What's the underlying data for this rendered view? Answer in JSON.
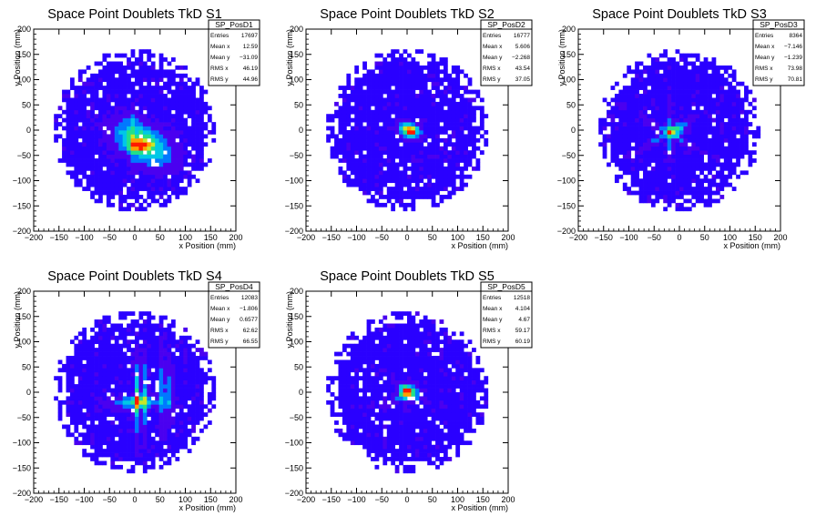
{
  "chart_data": [
    {
      "type": "heatmap",
      "title": "Space Point Doublets TkD S1",
      "xlabel": "x Position (mm)",
      "ylabel": "y Position (mm)",
      "xlim": [
        -200,
        200
      ],
      "ylim": [
        -200,
        200
      ],
      "xticks": [
        "−200",
        "−150",
        "−100",
        "−50",
        "0",
        "50",
        "100",
        "150",
        "200"
      ],
      "yticks": [
        "−200",
        "−150",
        "−100",
        "−50",
        "0",
        "50",
        "100",
        "150",
        "200"
      ],
      "stats": {
        "name": "SP_PosD1",
        "rows": [
          {
            "label": "Entries",
            "value": "17697"
          },
          {
            "label": "Mean x",
            "value": "12.59"
          },
          {
            "label": "Mean y",
            "value": "−31.09"
          },
          {
            "label": "RMS x",
            "value": "46.19"
          },
          {
            "label": "RMS y",
            "value": "44.96"
          }
        ]
      },
      "hotspots": [
        {
          "x": 15,
          "y": -25,
          "sx": 40,
          "sy": 22,
          "rot": -30,
          "amp": 0.55
        },
        {
          "x": 10,
          "y": -30,
          "sx": 12,
          "sy": 8,
          "rot": 0,
          "amp": 0.45
        },
        {
          "x": -5,
          "y": -10,
          "sx": 4,
          "sy": 40,
          "rot": 0,
          "amp": 0.15
        }
      ]
    },
    {
      "type": "heatmap",
      "title": "Space Point Doublets TkD S2",
      "xlabel": "x Position (mm)",
      "ylabel": "y Position (mm)",
      "xlim": [
        -200,
        200
      ],
      "ylim": [
        -200,
        200
      ],
      "xticks": [
        "−200",
        "−150",
        "−100",
        "−50",
        "0",
        "50",
        "100",
        "150",
        "200"
      ],
      "yticks": [
        "−200",
        "−150",
        "−100",
        "−50",
        "0",
        "50",
        "100",
        "150",
        "200"
      ],
      "stats": {
        "name": "SP_PosD2",
        "rows": [
          {
            "label": "Entries",
            "value": "16777"
          },
          {
            "label": "Mean x",
            "value": "5.606"
          },
          {
            "label": "Mean y",
            "value": "−2.268"
          },
          {
            "label": "RMS x",
            "value": "43.54"
          },
          {
            "label": "RMS y",
            "value": "37.05"
          }
        ]
      },
      "hotspots": [
        {
          "x": 5,
          "y": 0,
          "sx": 14,
          "sy": 9,
          "rot": -20,
          "amp": 0.7
        },
        {
          "x": 8,
          "y": -3,
          "sx": 5,
          "sy": 4,
          "rot": 0,
          "amp": 0.4
        }
      ]
    },
    {
      "type": "heatmap",
      "title": "Space Point Doublets TkD S3",
      "xlabel": "x Position (mm)",
      "ylabel": "y Position (mm)",
      "xlim": [
        -200,
        200
      ],
      "ylim": [
        -200,
        200
      ],
      "xticks": [
        "−200",
        "−150",
        "−100",
        "−50",
        "0",
        "50",
        "100",
        "150",
        "200"
      ],
      "yticks": [
        "−200",
        "−150",
        "−100",
        "−50",
        "0",
        "50",
        "100",
        "150",
        "200"
      ],
      "stats": {
        "name": "SP_PosD3",
        "rows": [
          {
            "label": "Entries",
            "value": "8364"
          },
          {
            "label": "Mean x",
            "value": "−7.146"
          },
          {
            "label": "Mean y",
            "value": "−1.239"
          },
          {
            "label": "RMS x",
            "value": "73.98"
          },
          {
            "label": "RMS y",
            "value": "70.81"
          }
        ]
      },
      "hotspots": [
        {
          "x": -20,
          "y": -5,
          "sx": 40,
          "sy": 4,
          "rot": 30,
          "amp": 0.25
        },
        {
          "x": -20,
          "y": -5,
          "sx": 40,
          "sy": 4,
          "rot": -30,
          "amp": 0.25
        },
        {
          "x": -20,
          "y": -5,
          "sx": 4,
          "sy": 35,
          "rot": 0,
          "amp": 0.22
        },
        {
          "x": -5,
          "y": 0,
          "sx": 10,
          "sy": 8,
          "rot": 0,
          "amp": 0.35
        }
      ]
    },
    {
      "type": "heatmap",
      "title": "Space Point Doublets TkD S4",
      "xlabel": "x Position (mm)",
      "ylabel": "y Position (mm)",
      "xlim": [
        -200,
        200
      ],
      "ylim": [
        -200,
        200
      ],
      "xticks": [
        "−200",
        "−150",
        "−100",
        "−50",
        "0",
        "50",
        "100",
        "150",
        "200"
      ],
      "yticks": [
        "−200",
        "−150",
        "−100",
        "−50",
        "0",
        "50",
        "100",
        "150",
        "200"
      ],
      "stats": {
        "name": "SP_PosD4",
        "rows": [
          {
            "label": "Entries",
            "value": "12083"
          },
          {
            "label": "Mean x",
            "value": "−1.806"
          },
          {
            "label": "Mean y",
            "value": "0.6577"
          },
          {
            "label": "RMS x",
            "value": "62.62"
          },
          {
            "label": "RMS y",
            "value": "66.55"
          }
        ]
      },
      "hotspots": [
        {
          "x": 5,
          "y": -10,
          "sx": 4,
          "sy": 45,
          "rot": 0,
          "amp": 0.45
        },
        {
          "x": 20,
          "y": -5,
          "sx": 4,
          "sy": 45,
          "rot": 0,
          "amp": 0.3
        },
        {
          "x": 55,
          "y": 0,
          "sx": 4,
          "sy": 45,
          "rot": 0,
          "amp": 0.3
        },
        {
          "x": 70,
          "y": 0,
          "sx": 4,
          "sy": 40,
          "rot": 0,
          "amp": 0.25
        },
        {
          "x": 5,
          "y": -20,
          "sx": 35,
          "sy": 8,
          "rot": 0,
          "amp": 0.35
        },
        {
          "x": 5,
          "y": -15,
          "sx": 6,
          "sy": 6,
          "rot": 0,
          "amp": 0.35
        }
      ]
    },
    {
      "type": "heatmap",
      "title": "Space Point Doublets TkD S5",
      "xlabel": "x Position (mm)",
      "ylabel": "y Position (mm)",
      "xlim": [
        -200,
        200
      ],
      "ylim": [
        -200,
        200
      ],
      "xticks": [
        "−200",
        "−150",
        "−100",
        "−50",
        "0",
        "50",
        "100",
        "150",
        "200"
      ],
      "yticks": [
        "−200",
        "−150",
        "−100",
        "−50",
        "0",
        "50",
        "100",
        "150",
        "200"
      ],
      "stats": {
        "name": "SP_PosD5",
        "rows": [
          {
            "label": "Entries",
            "value": "12518"
          },
          {
            "label": "Mean x",
            "value": "4.104"
          },
          {
            "label": "Mean y",
            "value": "4.67"
          },
          {
            "label": "RMS x",
            "value": "59.17"
          },
          {
            "label": "RMS y",
            "value": "60.19"
          }
        ]
      },
      "hotspots": [
        {
          "x": 0,
          "y": 0,
          "sx": 11,
          "sy": 9,
          "rot": 0,
          "amp": 0.7
        },
        {
          "x": -10,
          "y": -5,
          "sx": 25,
          "sy": 4,
          "rot": 35,
          "amp": 0.2
        },
        {
          "x": 0,
          "y": 5,
          "sx": 25,
          "sy": 4,
          "rot": -35,
          "amp": 0.2
        }
      ]
    }
  ],
  "palette": [
    "#2a00ff",
    "#4a00f0",
    "#0078ff",
    "#00c8e6",
    "#22e08a",
    "#c8e628",
    "#ffa000",
    "#ff1a00"
  ]
}
